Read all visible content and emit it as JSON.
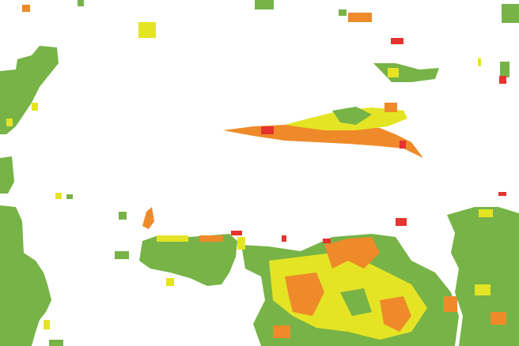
{
  "palette": [
    "#77b347",
    "#e4e424",
    "#ef8a2a",
    "#e5332e"
  ]
}
